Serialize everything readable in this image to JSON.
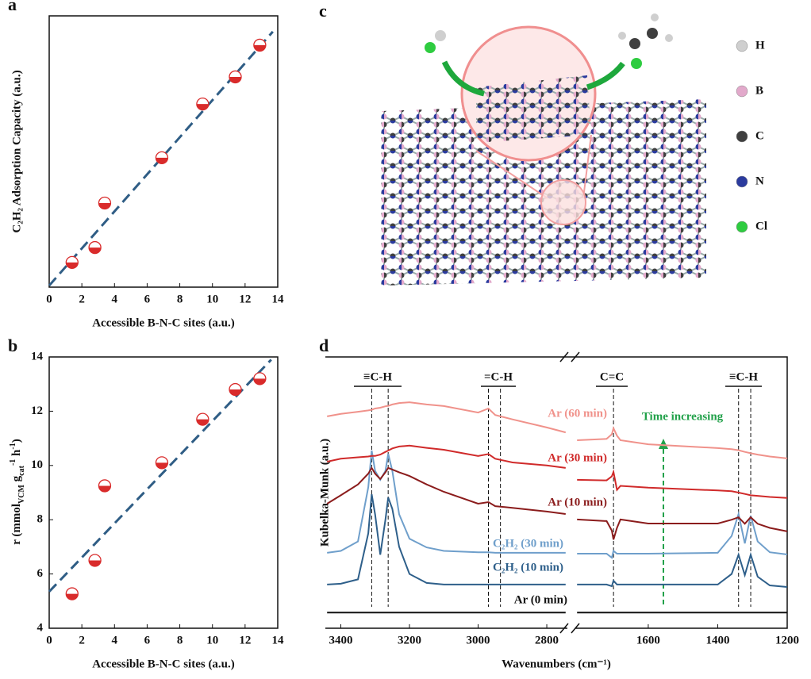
{
  "chart_data": [
    {
      "type": "scatter",
      "label": "a",
      "xlabel": "Accessible B-N-C sites (a.u.)",
      "ylabel": "C₂H₂ Adsorption Capacity (a.u.)",
      "x": [
        1.4,
        2.8,
        3.4,
        6.9,
        9.4,
        11.4,
        12.9
      ],
      "values": [
        9.1,
        14.6,
        31,
        47.7,
        67.5,
        77.5,
        89.2
      ],
      "color": "#d92b2b",
      "trend": {
        "x": [
          0,
          13.7
        ],
        "values": [
          0.6,
          94.2
        ],
        "color": "#2f5d85"
      },
      "xlim": [
        0,
        14
      ],
      "xticks": [
        0,
        2,
        4,
        6,
        8,
        10,
        12,
        14
      ],
      "ylim": [
        0,
        100
      ]
    },
    {
      "type": "scatter",
      "label": "b",
      "xlabel": "Accessible B-N-C sites (a.u.)",
      "ylabel": [
        "r (mmol",
        "VCM",
        " g",
        "cat",
        "-1",
        " h",
        "-1",
        ")"
      ],
      "x": [
        1.4,
        2.8,
        3.4,
        6.9,
        9.4,
        11.4,
        12.9
      ],
      "values": [
        5.27,
        6.5,
        9.25,
        10.1,
        11.7,
        12.8,
        13.2
      ],
      "color": "#d92b2b",
      "trend": {
        "x": [
          0,
          13.6
        ],
        "values": [
          5.35,
          13.9
        ],
        "color": "#2f5d85"
      },
      "xlim": [
        0,
        14
      ],
      "xticks": [
        0,
        2,
        4,
        6,
        8,
        10,
        12,
        14
      ],
      "ylim": [
        4,
        14
      ],
      "yticks": [
        4,
        6,
        8,
        10,
        12,
        14
      ]
    },
    {
      "type": "line",
      "label": "d",
      "xlabel": "Wavenumbers (cm⁻¹)",
      "ylabel": "Kubelka-Munk (a.u.)",
      "xlim": [
        [
          3445,
          2740
        ],
        [
          1810,
          1200
        ]
      ],
      "xticks": [
        3400,
        3200,
        3000,
        2800,
        1600,
        1400,
        1200
      ],
      "ylim": [
        0,
        100
      ],
      "x": [
        3440,
        3400,
        3350,
        3320,
        3310,
        3300,
        3285,
        3270,
        3262,
        3250,
        3230,
        3200,
        3150,
        3100,
        3000,
        2970,
        2950,
        2900,
        2800,
        2745,
        1805,
        1720,
        1705,
        1700,
        1690,
        1680,
        1600,
        1400,
        1360,
        1340,
        1322,
        1305,
        1285,
        1250,
        1200
      ],
      "series": [
        {
          "name": "Ar (0 min)",
          "color": "#111111",
          "values": [
            5.8,
            5.8,
            5.8,
            5.8,
            5.8,
            5.8,
            5.8,
            5.8,
            5.8,
            5.8,
            5.8,
            5.8,
            5.8,
            5.8,
            5.8,
            5.8,
            5.8,
            5.8,
            5.8,
            5.8,
            5.8,
            5.8,
            5.8,
            5.8,
            5.8,
            5.8,
            5.8,
            5.8,
            5.8,
            5.8,
            5.8,
            5.8,
            5.8,
            5.8,
            5.8
          ]
        },
        {
          "name": "C₂H₂ (10 min)",
          "color": "#2e5f8a",
          "values": [
            16.1,
            16.4,
            18,
            35,
            49.4,
            42,
            27.1,
            40,
            48.2,
            44,
            30,
            20,
            16.7,
            16.1,
            16.1,
            16.1,
            16.1,
            16.1,
            16.1,
            16.1,
            16.1,
            16.1,
            15.5,
            17.5,
            16.1,
            16.1,
            16.1,
            16.1,
            20,
            27.1,
            19.6,
            27.1,
            19,
            15.8,
            15.2
          ]
        },
        {
          "name": "C₂H₂ (30 min)",
          "color": "#6f9fcb",
          "values": [
            27.8,
            28.5,
            32,
            52,
            65.5,
            58,
            54.7,
            58,
            64.3,
            58,
            42,
            33,
            29.8,
            28.5,
            28,
            28,
            27.8,
            27.8,
            27.8,
            27.8,
            27.5,
            27.5,
            26,
            28.5,
            27.5,
            27.5,
            27.5,
            27.8,
            34,
            42.1,
            31.3,
            41.5,
            32,
            28,
            27.2
          ]
        },
        {
          "name": "Ar (10 min)",
          "color": "#8b1c1c",
          "values": [
            45.9,
            49,
            53,
            57,
            59.1,
            57,
            55,
            57.5,
            59.1,
            58.5,
            57.5,
            56.1,
            53,
            50.3,
            45.9,
            46.5,
            45,
            44.4,
            43,
            42.1,
            40.1,
            39.5,
            36,
            32.7,
            37,
            40.1,
            38.6,
            38.6,
            40,
            40.9,
            38.5,
            40.9,
            38.5,
            37,
            35.7
          ]
        },
        {
          "name": "Ar (30 min)",
          "color": "#d02a2a",
          "values": [
            61.4,
            62.5,
            63,
            63.3,
            63.5,
            63.5,
            64,
            65,
            65.5,
            66.3,
            67,
            67.3,
            66.5,
            65.8,
            63.5,
            64.2,
            62.5,
            61.1,
            60,
            59.1,
            54.7,
            54.5,
            56,
            57.6,
            51,
            52.5,
            51.8,
            50.8,
            50.5,
            50,
            49.5,
            49,
            48.8,
            48.4,
            48
          ]
        },
        {
          "name": "Ar (60 min)",
          "color": "#f0928b",
          "values": [
            78.1,
            79,
            79.8,
            80.3,
            80.5,
            81,
            81.3,
            81.8,
            82,
            82.5,
            83,
            83.3,
            82.5,
            81.9,
            79.5,
            81,
            78.6,
            77,
            74,
            72.2,
            69.3,
            69.8,
            71.5,
            73.7,
            71,
            69.3,
            67.8,
            66.4,
            66,
            65.6,
            65,
            64.5,
            64,
            63.3,
            62.6
          ]
        }
      ],
      "reference_lines": [
        3310,
        3262,
        2970,
        2935,
        1700,
        1340,
        1305
      ],
      "annotations": [
        "≡C-H",
        "=C-H",
        "C=C",
        "≡C-H",
        "Time increasing"
      ]
    }
  ],
  "illustration": {
    "label": "c",
    "legend": [
      {
        "name": "H",
        "color": "#cfcfcf"
      },
      {
        "name": "B",
        "color": "#e2a9cb"
      },
      {
        "name": "C",
        "color": "#3f3f3f"
      },
      {
        "name": "N",
        "color": "#2b3b9e"
      },
      {
        "name": "Cl",
        "color": "#2ecc40"
      }
    ]
  }
}
